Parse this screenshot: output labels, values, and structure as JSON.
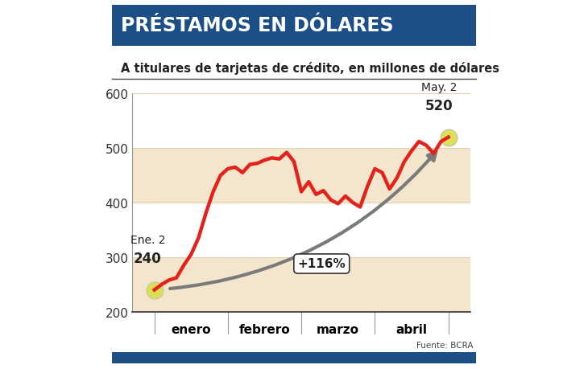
{
  "chart_data": {
    "type": "line",
    "title": "PRÉSTAMOS EN DÓLARES",
    "subtitle": "A titulares de tarjetas de crédito, en millones de dólares",
    "source": "Fuente: BCRA",
    "categories": [
      null,
      null,
      null,
      null,
      null,
      "enero",
      null,
      null,
      null,
      null,
      null,
      null,
      null,
      null,
      null,
      "febrero",
      null,
      null,
      null,
      null,
      null,
      null,
      null,
      null,
      null,
      "marzo",
      null,
      null,
      null,
      null,
      null,
      null,
      null,
      null,
      null,
      "abril",
      null,
      null,
      null,
      null,
      null
    ],
    "values": [
      240,
      250,
      258,
      262,
      285,
      305,
      335,
      380,
      420,
      450,
      462,
      465,
      455,
      470,
      472,
      478,
      482,
      480,
      492,
      475,
      420,
      438,
      415,
      422,
      405,
      398,
      412,
      400,
      392,
      430,
      462,
      455,
      425,
      445,
      475,
      495,
      512,
      505,
      490,
      512,
      520
    ],
    "color": "#e3231b",
    "ylim": [
      200,
      600
    ],
    "yticks": [
      200,
      300,
      400,
      500,
      600
    ],
    "grid": true,
    "annotations": [
      {
        "label": "Ene. 2",
        "value": 240
      },
      {
        "label": "May. 2",
        "value": 520
      },
      {
        "text": "+116%"
      }
    ]
  }
}
